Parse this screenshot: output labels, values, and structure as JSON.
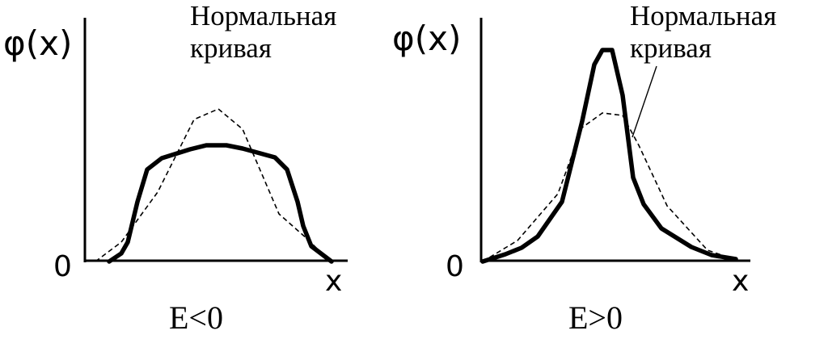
{
  "panels": [
    {
      "id": "left",
      "y_label": "φ(x)",
      "origin_label": "0",
      "x_label": "x",
      "curve_label_line1": "Нормальная",
      "curve_label_line2": "кривая",
      "caption": "E<0",
      "normal_curve_points": [
        [
          118,
          324
        ],
        [
          150,
          300
        ],
        [
          195,
          238
        ],
        [
          240,
          148
        ],
        [
          270,
          135
        ],
        [
          300,
          160
        ],
        [
          345,
          265
        ],
        [
          380,
          296
        ],
        [
          400,
          316
        ],
        [
          412,
          324
        ]
      ],
      "distorted_curve_points": [
        [
          135,
          324
        ],
        [
          150,
          314
        ],
        [
          158,
          300
        ],
        [
          170,
          250
        ],
        [
          182,
          210
        ],
        [
          200,
          196
        ],
        [
          235,
          185
        ],
        [
          255,
          180
        ],
        [
          280,
          180
        ],
        [
          300,
          184
        ],
        [
          340,
          195
        ],
        [
          355,
          210
        ],
        [
          368,
          250
        ],
        [
          375,
          280
        ],
        [
          385,
          305
        ],
        [
          410,
          324
        ]
      ]
    },
    {
      "id": "right",
      "y_label": "φ(x)",
      "origin_label": "0",
      "x_label": "x",
      "curve_label_line1": "Нормальная",
      "curve_label_line2": "кривая",
      "caption": "E>0",
      "normal_curve_points": [
        [
          597,
          324
        ],
        [
          640,
          298
        ],
        [
          690,
          240
        ],
        [
          720,
          158
        ],
        [
          745,
          140
        ],
        [
          770,
          143
        ],
        [
          790,
          180
        ],
        [
          825,
          255
        ],
        [
          875,
          310
        ],
        [
          910,
          322
        ]
      ],
      "distorted_curve_points": [
        [
          597,
          324
        ],
        [
          625,
          315
        ],
        [
          645,
          307
        ],
        [
          665,
          293
        ],
        [
          695,
          250
        ],
        [
          720,
          150
        ],
        [
          735,
          80
        ],
        [
          745,
          62
        ],
        [
          757,
          62
        ],
        [
          770,
          118
        ],
        [
          783,
          220
        ],
        [
          796,
          253
        ],
        [
          818,
          283
        ],
        [
          855,
          306
        ],
        [
          880,
          316
        ],
        [
          910,
          321
        ]
      ]
    }
  ]
}
